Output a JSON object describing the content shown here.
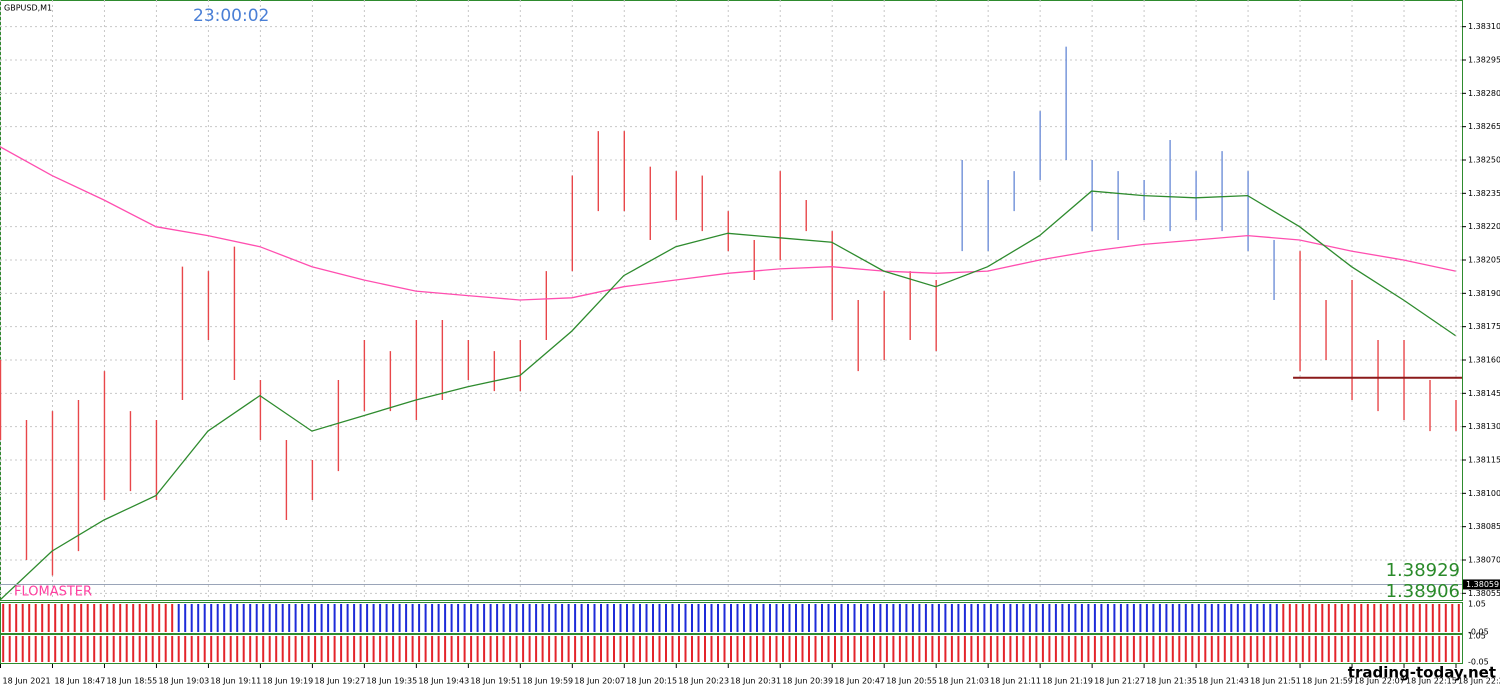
{
  "chart_data": {
    "type": "ohlc",
    "title": "GBPUSD,M1",
    "clock": "23:00:02",
    "indicator_name": "FLOMASTER",
    "indicator_values": [
      "1.38929",
      "1.38906"
    ],
    "watermark": "trading-today.net",
    "grid": true,
    "xlim": [
      "18:39",
      "22:24"
    ],
    "xticks": [
      {
        "value": "18:39",
        "label": "18 Jun 2021"
      },
      {
        "value": "18:47",
        "label": "18 Jun 18:47"
      },
      {
        "value": "18:55",
        "label": "18 Jun 18:55"
      },
      {
        "value": "19:03",
        "label": "18 Jun 19:03"
      },
      {
        "value": "19:11",
        "label": "18 Jun 19:11"
      },
      {
        "value": "19:19",
        "label": "18 Jun 19:19"
      },
      {
        "value": "19:27",
        "label": "18 Jun 19:27"
      },
      {
        "value": "19:35",
        "label": "18 Jun 19:35"
      },
      {
        "value": "19:43",
        "label": "18 Jun 19:43"
      },
      {
        "value": "19:51",
        "label": "18 Jun 19:51"
      },
      {
        "value": "19:59",
        "label": "18 Jun 19:59"
      },
      {
        "value": "20:07",
        "label": "18 Jun 20:07"
      },
      {
        "value": "20:15",
        "label": "18 Jun 20:15"
      },
      {
        "value": "20:23",
        "label": "18 Jun 20:23"
      },
      {
        "value": "20:31",
        "label": "18 Jun 20:31"
      },
      {
        "value": "20:39",
        "label": "18 Jun 20:39"
      },
      {
        "value": "20:47",
        "label": "18 Jun 20:47"
      },
      {
        "value": "20:55",
        "label": "18 Jun 20:55"
      },
      {
        "value": "21:03",
        "label": "18 Jun 21:03"
      },
      {
        "value": "21:11",
        "label": "18 Jun 21:11"
      },
      {
        "value": "21:19",
        "label": "18 Jun 21:19"
      },
      {
        "value": "21:27",
        "label": "18 Jun 21:27"
      },
      {
        "value": "21:35",
        "label": "18 Jun 21:35"
      },
      {
        "value": "21:43",
        "label": "18 Jun 21:43"
      },
      {
        "value": "21:51",
        "label": "18 Jun 21:51"
      },
      {
        "value": "21:59",
        "label": "18 Jun 21:59"
      },
      {
        "value": "22:07",
        "label": "18 Jun 22:07"
      },
      {
        "value": "22:15",
        "label": "18 Jun 22:15"
      },
      {
        "value": "22:23",
        "label": "18 Jun 22:2"
      }
    ],
    "ylim": [
      1.38052,
      1.38322
    ],
    "yticks": [
      1.38055,
      {
        "value": 1.3807,
        "label": "1.38070"
      },
      1.38085,
      {
        "value": 1.381,
        "label": "1.38100"
      },
      1.38115,
      {
        "value": 1.3813,
        "label": "1.38130"
      },
      1.38145,
      {
        "value": 1.3816,
        "label": "1.38160"
      },
      1.38175,
      {
        "value": 1.3819,
        "label": "1.38190"
      },
      1.38205,
      {
        "value": 1.3822,
        "label": "1.38220"
      },
      1.38235,
      {
        "value": 1.3825,
        "label": "1.38250"
      },
      1.38265,
      {
        "value": 1.3828,
        "label": "1.38280"
      },
      1.38295,
      {
        "value": 1.3831,
        "label": "1.38310"
      }
    ],
    "series": [
      {
        "color": "#e8474a",
        "x": [
          "18:39",
          "18:43",
          "18:47",
          "18:51",
          "18:55",
          "18:59",
          "19:03",
          "19:07",
          "19:11",
          "19:15",
          "19:19",
          "19:23",
          "19:27",
          "19:31",
          "19:35",
          "19:39",
          "19:43",
          "19:47",
          "19:51",
          "19:55",
          "19:59",
          "20:03",
          "20:07",
          "20:11",
          "20:15",
          "20:19",
          "20:23",
          "20:27",
          "20:31",
          "20:35",
          "20:39",
          "20:43",
          "20:47",
          "20:51",
          "20:55",
          "20:59",
          "21:03"
        ],
        "high": [
          1.3816,
          1.38133,
          1.38137,
          1.38142,
          1.38155,
          1.38137,
          1.38133,
          1.38202,
          1.382,
          1.38211,
          1.38151,
          1.38124,
          1.38115,
          1.38151,
          1.38169,
          1.38164,
          1.38178,
          1.38178,
          1.38169,
          1.38164,
          1.38169,
          1.382,
          1.38243,
          1.38263,
          1.38263,
          1.38247,
          1.38245,
          1.38243,
          1.38227,
          1.38214,
          1.38245,
          1.38232,
          1.38218,
          1.38187,
          1.38191,
          1.382,
          1.38196
        ],
        "low": [
          1.38124,
          1.3807,
          1.38063,
          1.38074,
          1.38097,
          1.38101,
          1.38097,
          1.38142,
          1.38169,
          1.38151,
          1.38124,
          1.38088,
          1.38097,
          1.3811,
          1.38137,
          1.38137,
          1.38133,
          1.38142,
          1.38151,
          1.38146,
          1.38146,
          1.38169,
          1.382,
          1.38227,
          1.38227,
          1.38214,
          1.38223,
          1.38218,
          1.38209,
          1.38196,
          1.38205,
          1.38218,
          1.38178,
          1.38155,
          1.3816,
          1.38169,
          1.38164
        ]
      },
      {
        "color": "#6f8fd8",
        "x": [
          "21:07",
          "21:11",
          "21:15",
          "21:19",
          "21:23",
          "21:27",
          "21:31",
          "21:35",
          "21:39",
          "21:43",
          "21:47",
          "21:51",
          "21:55"
        ],
        "high": [
          1.3825,
          1.38241,
          1.38245,
          1.38272,
          1.38301,
          1.3825,
          1.38245,
          1.38241,
          1.38259,
          1.38245,
          1.38254,
          1.38245,
          1.38214
        ],
        "low": [
          1.38209,
          1.38209,
          1.38227,
          1.38241,
          1.3825,
          1.38218,
          1.38214,
          1.38223,
          1.38218,
          1.38223,
          1.38218,
          1.38209,
          1.38187
        ]
      },
      {
        "color": "#e8474a",
        "x": [
          "21:59",
          "22:03",
          "22:07",
          "22:11",
          "22:15",
          "22:19",
          "22:23"
        ],
        "high": [
          1.38209,
          1.38187,
          1.38196,
          1.38169,
          1.38169,
          1.38151,
          1.38142
        ],
        "low": [
          1.38155,
          1.3816,
          1.38142,
          1.38137,
          1.38133,
          1.38128,
          1.38128
        ]
      }
    ],
    "lines": [
      {
        "color": "#ff4fb0",
        "x": [
          "18:39",
          "18:47",
          "18:55",
          "19:03",
          "19:11",
          "19:19",
          "19:27",
          "19:35",
          "19:43",
          "19:51",
          "19:59",
          "20:07",
          "20:15",
          "20:23",
          "20:31",
          "20:39",
          "20:47",
          "20:55",
          "21:03",
          "21:11",
          "21:19",
          "21:27",
          "21:35",
          "21:43",
          "21:51",
          "21:59",
          "22:07",
          "22:15",
          "22:23"
        ],
        "values": [
          1.38256,
          1.38243,
          1.38232,
          1.3822,
          1.38216,
          1.38211,
          1.38202,
          1.38196,
          1.38191,
          1.38189,
          1.38187,
          1.38188,
          1.38193,
          1.38196,
          1.38199,
          1.38201,
          1.38202,
          1.382,
          1.38199,
          1.382,
          1.38205,
          1.38209,
          1.38212,
          1.38214,
          1.38216,
          1.38214,
          1.38209,
          1.38205,
          1.382
        ]
      },
      {
        "color": "#2e8b2e",
        "x": [
          "18:39",
          "18:47",
          "18:55",
          "19:03",
          "19:11",
          "19:19",
          "19:27",
          "19:35",
          "19:43",
          "19:51",
          "19:59",
          "20:07",
          "20:15",
          "20:23",
          "20:31",
          "20:39",
          "20:47",
          "20:55",
          "21:03",
          "21:11",
          "21:19",
          "21:27",
          "21:35",
          "21:43",
          "21:51",
          "21:59",
          "22:07",
          "22:15",
          "22:23"
        ],
        "values": [
          1.38052,
          1.38074,
          1.38088,
          1.38099,
          1.38128,
          1.38144,
          1.38128,
          1.38135,
          1.38142,
          1.38148,
          1.38153,
          1.38173,
          1.38198,
          1.38211,
          1.38217,
          1.38215,
          1.38213,
          1.382,
          1.38193,
          1.38202,
          1.38216,
          1.38236,
          1.38234,
          1.38233,
          1.38234,
          1.3822,
          1.38202,
          1.38187,
          1.38171
        ]
      }
    ],
    "level": {
      "value": 1.38152,
      "from": "21:58",
      "color": "#8b1a1a"
    },
    "current_price": 1.38059,
    "panels": [
      {
        "ylim": [
          -0.05,
          1.05
        ],
        "yticks": [
          1.05,
          -0.05
        ],
        "ranges": [
          {
            "color": "#e3242b",
            "from": "18:39",
            "to": "19:06"
          },
          {
            "color": "#1e2bd8",
            "from": "19:06",
            "to": "21:56"
          },
          {
            "color": "#e3242b",
            "from": "21:56",
            "to": "22:24"
          }
        ]
      },
      {
        "ylim": [
          -0.05,
          1.05
        ],
        "yticks": [
          1.05,
          -0.05
        ],
        "ranges": [
          {
            "color": "#e3242b",
            "from": "18:39",
            "to": "22:24"
          }
        ]
      }
    ]
  }
}
